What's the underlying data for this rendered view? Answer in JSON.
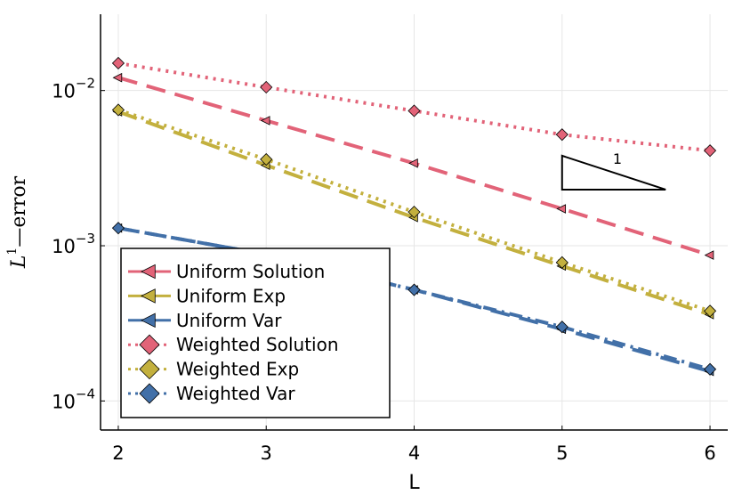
{
  "chart_data": {
    "type": "line",
    "xlabel": "L",
    "ylabel_main": "L",
    "ylabel_sup": "1",
    "ylabel_rest": "—error",
    "yscale": "log",
    "xlim": [
      1.88,
      6.12
    ],
    "ylim": [
      6.5e-05,
      0.031
    ],
    "x_ticks": [
      2,
      3,
      4,
      5,
      6
    ],
    "x_tick_labels": [
      "2",
      "3",
      "4",
      "5",
      "6"
    ],
    "y_ticks": [
      0.01,
      0.001,
      0.0001
    ],
    "y_tick_bases": [
      "10",
      "10",
      "10"
    ],
    "y_tick_exponents": [
      "−2",
      "−3",
      "−4"
    ],
    "grid": true,
    "legend_position": "bottom-left",
    "x": [
      2,
      3,
      4,
      5,
      6
    ],
    "series": [
      {
        "name": "Uniform Solution",
        "values": [
          0.0121,
          0.0064,
          0.0034,
          0.00173,
          0.00087
        ],
        "color": "#e26378",
        "style": "dash",
        "marker": "triangle-left"
      },
      {
        "name": "Uniform Exp",
        "values": [
          0.0073,
          0.0033,
          0.00152,
          0.00074,
          0.00036
        ],
        "color": "#c3b03e",
        "style": "dash",
        "marker": "triangle-left"
      },
      {
        "name": "Uniform Var",
        "values": [
          0.0013,
          0.00088,
          0.00052,
          0.00029,
          0.000155
        ],
        "color": "#4270a8",
        "style": "dash",
        "marker": "triangle-left"
      },
      {
        "name": "Weighted Solution",
        "values": [
          0.015,
          0.0105,
          0.0074,
          0.0052,
          0.0041
        ],
        "color": "#e26378",
        "style": "dot",
        "marker": "diamond"
      },
      {
        "name": "Weighted Exp",
        "values": [
          0.0075,
          0.0036,
          0.00165,
          0.00078,
          0.00038
        ],
        "color": "#c3b03e",
        "style": "dot",
        "marker": "diamond"
      },
      {
        "name": "Weighted Var",
        "values": [
          0.0013,
          0.00088,
          0.00052,
          0.0003,
          0.00016
        ],
        "color": "#4270a8",
        "style": "dashdot",
        "marker": "diamond"
      }
    ],
    "annotation": {
      "text": "1",
      "x0": 5.0,
      "x1": 5.7,
      "y_top": 0.0038,
      "y_bottom": 0.0023
    }
  }
}
